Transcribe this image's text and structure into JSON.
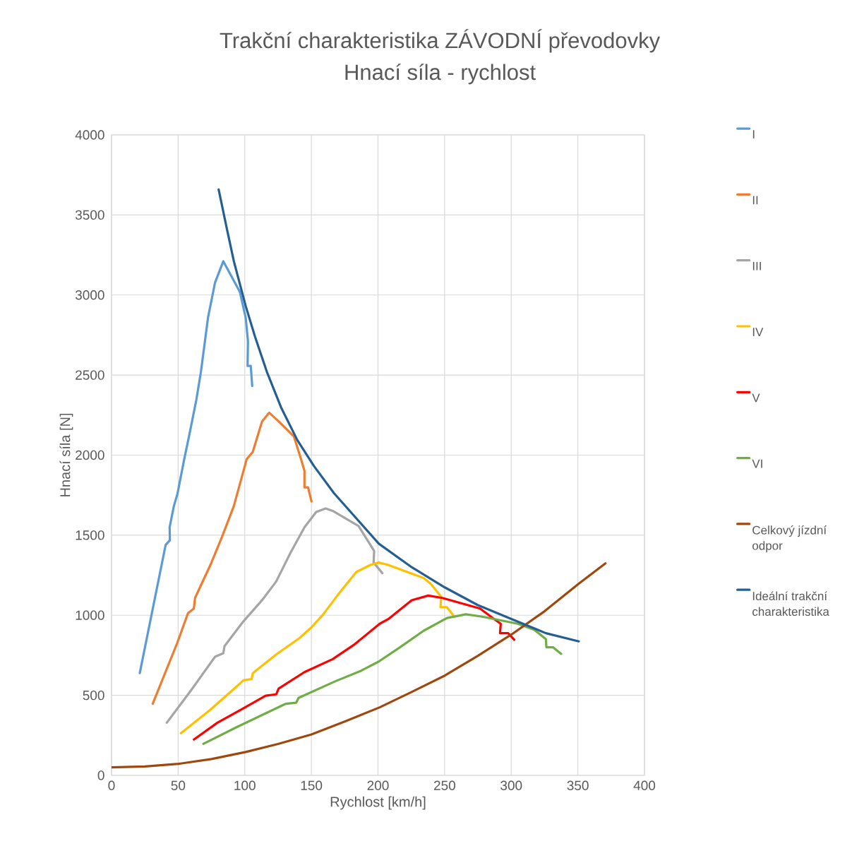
{
  "chart_data": {
    "type": "line",
    "title": "Trakční charakteristika ZÁVODNÍ převodovky",
    "subtitle": "Hnací síla - rychlost",
    "xlabel": "Rychlost [km/h]",
    "ylabel": "Hnací síla [N]",
    "xlim": [
      0,
      400
    ],
    "xticks": [
      0,
      50,
      100,
      150,
      200,
      250,
      300,
      350,
      400
    ],
    "ylim": [
      0,
      4000
    ],
    "yticks": [
      0,
      500,
      1000,
      1500,
      2000,
      2500,
      3000,
      3500,
      4000
    ],
    "grid": true,
    "legend": "right",
    "marker": "none",
    "line_style": "solid",
    "series": [
      {
        "name": "I",
        "color": "#5b9bd5",
        "x": [
          21.2,
          40.6,
          43.8,
          43.6,
          46.8,
          49.4,
          54.6,
          58.3,
          63.6,
          67.1,
          72.4,
          77.7,
          83.9,
          96.3,
          100.7,
          102.4,
          102.1,
          104.5,
          105.6
        ],
        "values": [
          639,
          1439,
          1468,
          1549,
          1682,
          1755,
          1976,
          2123,
          2343,
          2520,
          2858,
          3078,
          3211,
          3020,
          2858,
          2711,
          2557,
          2557,
          2431
        ]
      },
      {
        "name": "II",
        "color": "#ed7d31",
        "x": [
          30.9,
          49.4,
          57.4,
          61.8,
          62.7,
          74.2,
          83,
          91.8,
          101.5,
          106,
          113,
          118.3,
          125.4,
          136.9,
          142.2,
          144.8,
          144.8,
          147.5,
          150.1
        ],
        "values": [
          447,
          829,
          1013,
          1042,
          1108,
          1314,
          1491,
          1682,
          1976,
          2020,
          2211,
          2265,
          2211,
          2116,
          1976,
          1902,
          1799,
          1799,
          1711
        ]
      },
      {
        "name": "III",
        "color": "#a5a5a5",
        "x": [
          41.5,
          60,
          77.7,
          83.9,
          84.8,
          98.9,
          113,
          123.6,
          134.2,
          144.8,
          153.6,
          160.7,
          166,
          185.4,
          188.2,
          197.1,
          196.7,
          203.3
        ],
        "values": [
          329,
          535,
          741,
          763,
          807,
          961,
          1094,
          1211,
          1388,
          1549,
          1645,
          1667,
          1652,
          1557,
          1520,
          1402,
          1329,
          1263
        ]
      },
      {
        "name": "IV",
        "color": "#ffc000",
        "x": [
          52.1,
          74.2,
          97.1,
          98.9,
          105.1,
          106,
          123.6,
          141.3,
          150.1,
          158.9,
          169.5,
          183.7,
          194.3,
          200.6,
          207.7,
          234.2,
          239.5,
          247.4,
          246.9,
          251.8,
          256.3
        ],
        "values": [
          263,
          410,
          579,
          594,
          601,
          638,
          755,
          859,
          925,
          1006,
          1123,
          1270,
          1314,
          1329,
          1314,
          1233,
          1197,
          1116,
          1050,
          1050,
          1002
        ]
      },
      {
        "name": "V",
        "color": "#ff0000",
        "x": [
          61.8,
          79.5,
          98.9,
          115.7,
          123.6,
          125.4,
          144.8,
          166,
          181.9,
          201.3,
          207.7,
          225.3,
          237.7,
          248.3,
          276.6,
          287.2,
          292.1,
          291.6,
          297.7,
          302.2
        ],
        "values": [
          224,
          329,
          418,
          498,
          506,
          542,
          645,
          726,
          815,
          947,
          976,
          1094,
          1123,
          1108,
          1042,
          976,
          947,
          888,
          888,
          847
        ]
      },
      {
        "name": "VI",
        "color": "#70ad47",
        "x": [
          68.9,
          93.6,
          128.9,
          130.7,
          138.6,
          140.4,
          167.8,
          187.2,
          200.6,
          216.5,
          234.2,
          251.8,
          266,
          278.3,
          304.8,
          317.2,
          326,
          326.4,
          331.3,
          337.5
        ],
        "values": [
          197,
          300,
          440,
          447,
          454,
          484,
          587,
          653,
          711,
          800,
          903,
          983,
          1006,
          991,
          947,
          910,
          851,
          800,
          800,
          759
        ]
      },
      {
        "name": "Celkový jízdní odpor",
        "color": "#9e480e",
        "x": [
          0,
          25,
          50.3,
          75,
          100.7,
          125,
          150.1,
          175,
          201.3,
          225,
          250.1,
          275,
          300.4,
          325,
          350.7,
          370.7
        ],
        "values": [
          50,
          56,
          72,
          102,
          146,
          196,
          256,
          336,
          425,
          520,
          623,
          747,
          881,
          1025,
          1197,
          1324
        ]
      },
      {
        "name": "Ideální trakční charakteristika",
        "color": "#255e91",
        "x": [
          80.4,
          86.5,
          91.8,
          100.7,
          107.7,
          116.6,
          127.2,
          139.5,
          151.9,
          166.9,
          200.6,
          225.3,
          250.1,
          274.8,
          300.4,
          326,
          350.7
        ],
        "values": [
          3659,
          3416,
          3211,
          2931,
          2740,
          2520,
          2299,
          2093,
          1932,
          1763,
          1447,
          1300,
          1174,
          1064,
          976,
          888,
          837
        ]
      }
    ]
  }
}
